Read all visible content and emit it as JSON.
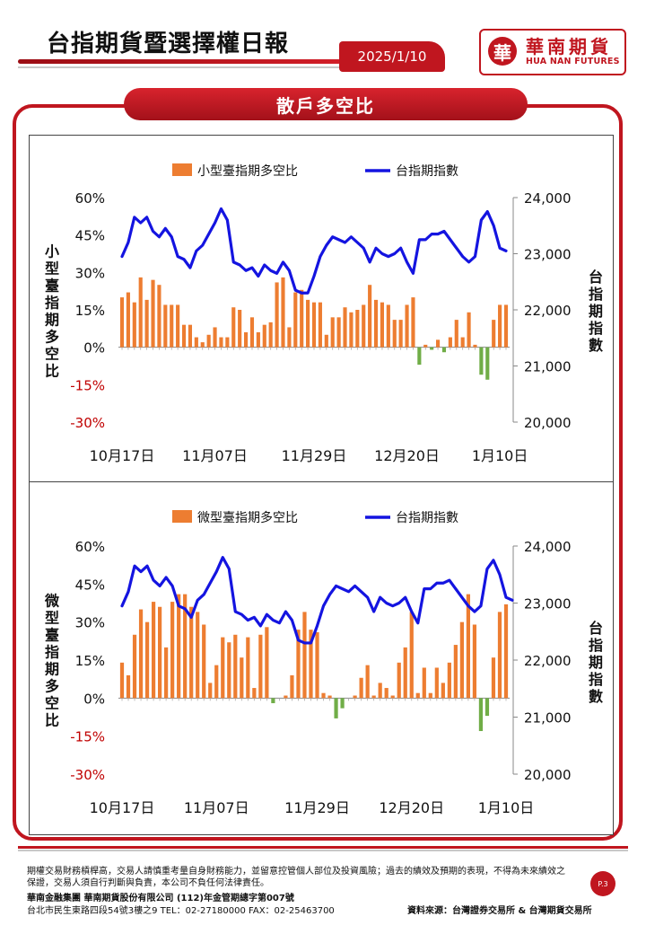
{
  "header": {
    "title": "台指期貨暨選擇權日報",
    "date": "2025/1/10",
    "logo_mark": "華",
    "logo_cn": "華南期貨",
    "logo_en": "HUA NAN FUTURES"
  },
  "section": {
    "title": "散戶多空比"
  },
  "colors": {
    "bar": "#ed7d31",
    "bar_negative": "#70ad47",
    "line": "#1414e0",
    "accent": "#c0161f",
    "negative_label": "#c00000"
  },
  "chart_data": [
    {
      "type": "bar+line",
      "legend": {
        "bar": "小型臺指期多空比",
        "line": "台指期指數"
      },
      "ylabel_left": "小型臺指期多空比",
      "ylabel_right": "台指期指數",
      "y_left_ticks": [
        "60%",
        "45%",
        "30%",
        "15%",
        "0%",
        "-15%",
        "-30%"
      ],
      "y_right_ticks": [
        "24,000",
        "23,000",
        "22,000",
        "21,000",
        "20,000"
      ],
      "x_ticks": [
        "10月17日",
        "11月07日",
        "11月29日",
        "12月20日",
        "1月10日"
      ],
      "x_tick_index": [
        0,
        15,
        31,
        46,
        61
      ],
      "ylim_left": [
        -30,
        60
      ],
      "ylim_right": [
        20000,
        24000
      ],
      "bar_values": [
        20,
        22,
        18,
        28,
        19,
        27,
        25,
        17,
        17,
        17,
        9,
        9,
        4,
        2,
        5,
        8,
        4,
        4,
        16,
        15,
        6,
        12,
        6,
        9,
        10,
        26,
        28,
        8,
        22,
        23,
        19,
        18,
        18,
        5,
        12,
        12,
        16,
        14,
        15,
        17,
        25,
        19,
        18,
        17,
        11,
        11,
        17,
        20,
        -7,
        1,
        -1,
        3,
        -2,
        4,
        11,
        4,
        14,
        1,
        -11,
        -13,
        11,
        17,
        17
      ],
      "line_values": [
        22950,
        23200,
        23650,
        23550,
        23650,
        23400,
        23300,
        23450,
        23300,
        22950,
        22900,
        22750,
        23050,
        23150,
        23350,
        23550,
        23800,
        23600,
        22850,
        22800,
        22700,
        22750,
        22600,
        22800,
        22700,
        22650,
        22850,
        22700,
        22350,
        22300,
        22300,
        22600,
        22950,
        23150,
        23300,
        23250,
        23200,
        23300,
        23200,
        23100,
        22850,
        23100,
        23000,
        22950,
        23000,
        23100,
        22850,
        22650,
        23250,
        23250,
        23350,
        23350,
        23400,
        23250,
        23100,
        22950,
        22850,
        22950,
        23600,
        23750,
        23500,
        23100,
        23050
      ]
    },
    {
      "type": "bar+line",
      "legend": {
        "bar": "微型臺指期多空比",
        "line": "台指期指數"
      },
      "ylabel_left": "微型臺指期多空比",
      "ylabel_right": "台指期指數",
      "y_left_ticks": [
        "60%",
        "45%",
        "30%",
        "15%",
        "0%",
        "-15%",
        "-30%"
      ],
      "y_right_ticks": [
        "24,000",
        "23,000",
        "22,000",
        "21,000",
        "20,000"
      ],
      "x_ticks": [
        "10月17日",
        "11月07日",
        "11月29日",
        "12月20日",
        "1月10日"
      ],
      "x_tick_index": [
        0,
        15,
        31,
        46,
        61
      ],
      "ylim_left": [
        -30,
        60
      ],
      "ylim_right": [
        20000,
        24000
      ],
      "bar_values": [
        14,
        9,
        25,
        35,
        30,
        38,
        36,
        20,
        38,
        41,
        41,
        36,
        34,
        29,
        6,
        13,
        24,
        22,
        25,
        16,
        24,
        4,
        25,
        28,
        -2,
        0,
        1,
        9,
        27,
        34,
        27,
        26,
        2,
        1,
        -8,
        -4,
        0,
        1,
        8,
        13,
        1,
        6,
        4,
        1,
        14,
        20,
        34,
        2,
        12,
        2,
        12,
        6,
        14,
        21,
        30,
        41,
        29,
        -13,
        -7,
        16,
        34,
        37
      ]
    }
  ],
  "watermark": "華南期貨",
  "footer": {
    "disclaimer": "期權交易財務槓桿高，交易人請慎重考量自身財務能力，並留意控管個人部位及投資風險；過去的績效及預期的表現，不得為未來績效之保證，交易人須自行判斷與負責，本公司不負任何法律責任。",
    "company": "華南金融集團 華南期貨股份有限公司 (112)年金管期總字第007號",
    "address": "台北市民生東路四段54號3樓之9  TEL：02-27180000  FAX：02-25463700",
    "source": "資料來源：台灣證券交易所 & 台灣期貨交易所",
    "page": "P.3"
  }
}
